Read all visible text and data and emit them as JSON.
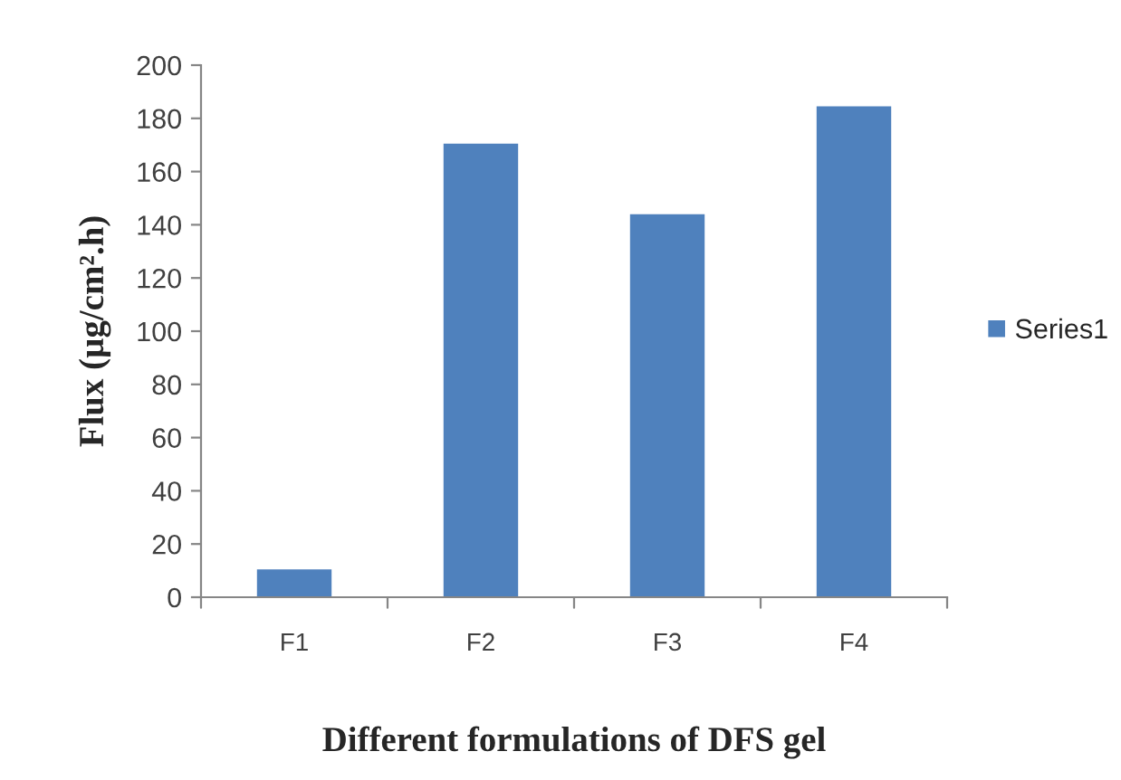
{
  "chart_data": {
    "type": "bar",
    "xlabel": "Different formulations of DFS gel",
    "ylabel": "Flux (µg/cm².h)",
    "categories": [
      "F1",
      "F2",
      "F3",
      "F4"
    ],
    "series": [
      {
        "name": "Series1",
        "color": "#4f81bd",
        "values": [
          10.5,
          170.5,
          144,
          184.5
        ]
      }
    ],
    "ylim": [
      0,
      200
    ],
    "yticks": [
      0,
      20,
      40,
      60,
      80,
      100,
      120,
      140,
      160,
      180,
      200
    ],
    "grid": false,
    "legend": "right"
  }
}
